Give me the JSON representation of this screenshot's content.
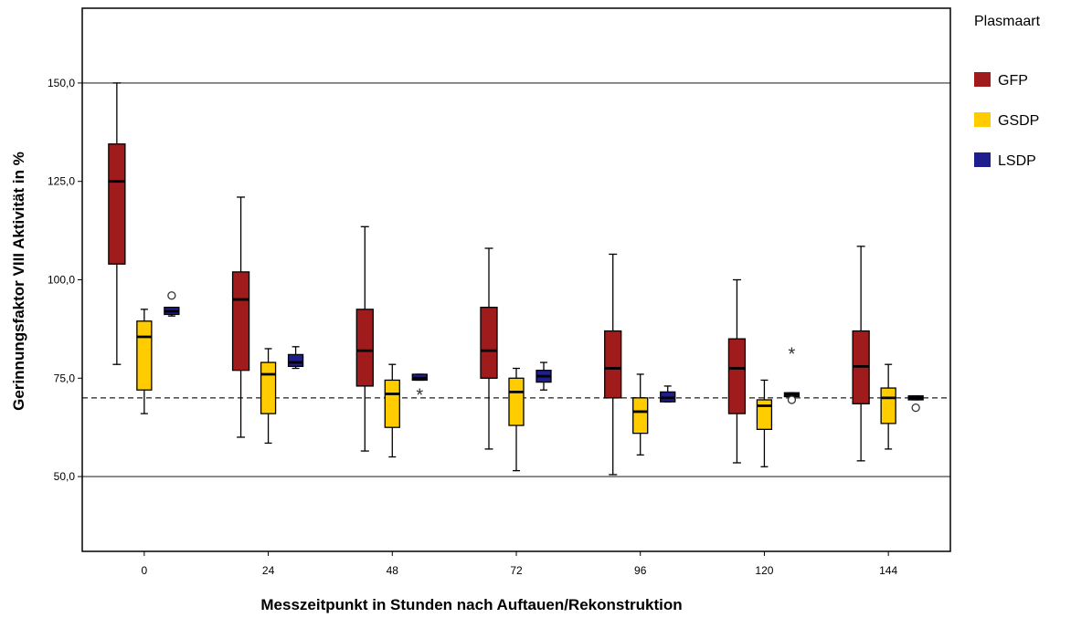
{
  "chart_data": {
    "type": "boxplot",
    "xlabel": "Messzeitpunkt in Stunden nach Auftauen/Rekonstruktion",
    "ylabel": "Gerinnungsfaktor VIII Aktivität in %",
    "categories": [
      "0",
      "24",
      "48",
      "72",
      "96",
      "120",
      "144"
    ],
    "ylim": [
      31,
      169
    ],
    "yticks": [
      50,
      75,
      100,
      125,
      150
    ],
    "ytick_labels": [
      "50,0",
      "75,0",
      "100,0",
      "125,0",
      "150,0"
    ],
    "reference_lines": [
      50,
      150
    ],
    "dashed_reference_line": 70,
    "legend_title": "Plasmaart",
    "legend_position": "right",
    "series": [
      {
        "name": "GFP",
        "color": "#A01C1C",
        "boxes": [
          {
            "min": 78.5,
            "q1": 104,
            "median": 125,
            "q3": 134.5,
            "max": 150,
            "outliers": []
          },
          {
            "min": 60,
            "q1": 77,
            "median": 95,
            "q3": 102,
            "max": 121,
            "outliers": []
          },
          {
            "min": 56.5,
            "q1": 73,
            "median": 82,
            "q3": 92.5,
            "max": 113.5,
            "outliers": []
          },
          {
            "min": 57,
            "q1": 75,
            "median": 82,
            "q3": 93,
            "max": 108,
            "outliers": []
          },
          {
            "min": 50.5,
            "q1": 70,
            "median": 77.5,
            "q3": 87,
            "max": 106.5,
            "outliers": []
          },
          {
            "min": 53.5,
            "q1": 66,
            "median": 77.5,
            "q3": 85,
            "max": 100,
            "outliers": []
          },
          {
            "min": 54,
            "q1": 68.5,
            "median": 78,
            "q3": 87,
            "max": 108.5,
            "outliers": []
          }
        ]
      },
      {
        "name": "GSDP",
        "color": "#FFCC00",
        "boxes": [
          {
            "min": 66,
            "q1": 72,
            "median": 85.5,
            "q3": 89.5,
            "max": 92.5,
            "outliers": []
          },
          {
            "min": 58.5,
            "q1": 66,
            "median": 76,
            "q3": 79,
            "max": 82.5,
            "outliers": []
          },
          {
            "min": 55,
            "q1": 62.5,
            "median": 71,
            "q3": 74.5,
            "max": 78.5,
            "outliers": []
          },
          {
            "min": 51.5,
            "q1": 63,
            "median": 71.5,
            "q3": 75,
            "max": 77.5,
            "outliers": []
          },
          {
            "min": 55.5,
            "q1": 61,
            "median": 66.5,
            "q3": 70,
            "max": 76,
            "outliers": []
          },
          {
            "min": 52.5,
            "q1": 62,
            "median": 68,
            "q3": 69.5,
            "max": 74.5,
            "outliers": []
          },
          {
            "min": 57,
            "q1": 63.5,
            "median": 70,
            "q3": 72.5,
            "max": 78.5,
            "outliers": []
          }
        ]
      },
      {
        "name": "LSDP",
        "color": "#1E1E8C",
        "boxes": [
          {
            "min": 90.8,
            "q1": 91.2,
            "median": 92,
            "q3": 93,
            "max": 93,
            "outliers": [
              {
                "value": 96,
                "marker": "circle"
              }
            ]
          },
          {
            "min": 77.5,
            "q1": 78,
            "median": 79,
            "q3": 81,
            "max": 83,
            "outliers": []
          },
          {
            "min": 74.5,
            "q1": 74.5,
            "median": 75,
            "q3": 76,
            "max": 76,
            "outliers": [
              {
                "value": 71,
                "marker": "star"
              }
            ]
          },
          {
            "min": 72,
            "q1": 74,
            "median": 75.5,
            "q3": 77,
            "max": 79,
            "outliers": []
          },
          {
            "min": 69,
            "q1": 69,
            "median": 70,
            "q3": 71.5,
            "max": 73,
            "outliers": []
          },
          {
            "min": 70.3,
            "q1": 70.3,
            "median": 70.8,
            "q3": 71.3,
            "max": 71.3,
            "outliers": [
              {
                "value": 69.5,
                "marker": "circle"
              },
              {
                "value": 81.5,
                "marker": "star"
              }
            ]
          },
          {
            "min": 69.5,
            "q1": 69.5,
            "median": 70,
            "q3": 70.5,
            "max": 70.5,
            "outliers": [
              {
                "value": 67.5,
                "marker": "circle"
              }
            ]
          }
        ]
      }
    ]
  }
}
